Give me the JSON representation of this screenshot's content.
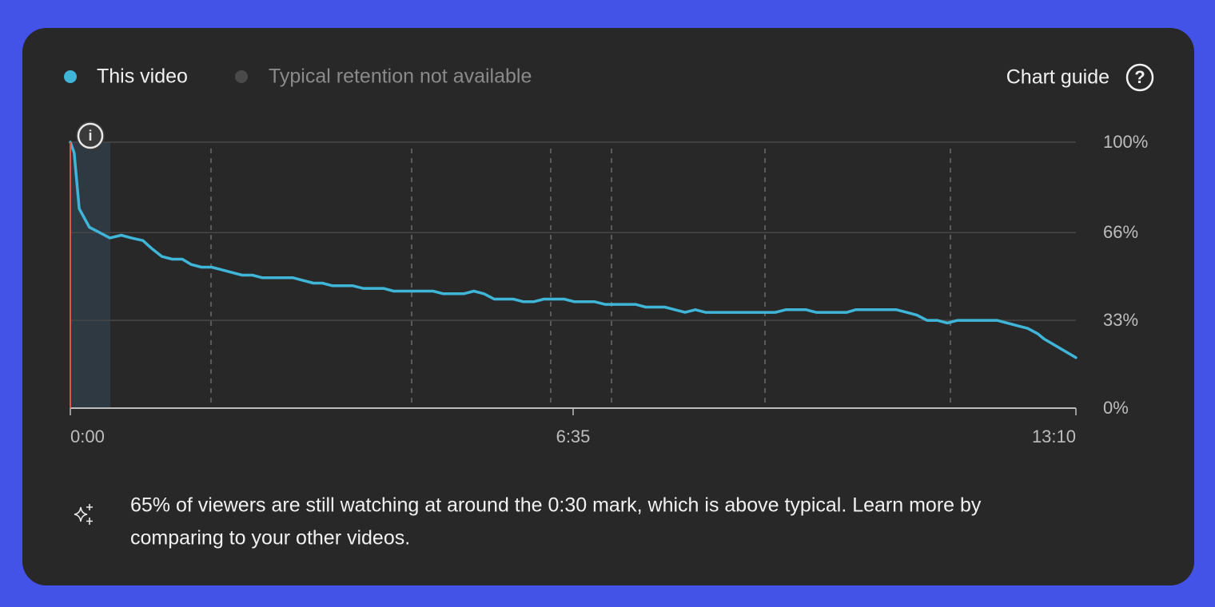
{
  "chart_guide_label": "Chart guide",
  "insight": [
    "65% of viewers are still watching at around the 0:30 mark, which is above typical. Learn more by",
    "comparing to your other videos."
  ],
  "chart_data": {
    "type": "line",
    "legend_unavailable": "Typical retention not available",
    "x": [
      0,
      3,
      7,
      15,
      23,
      31,
      40,
      48,
      57,
      64,
      72,
      80,
      88,
      95,
      103,
      111,
      119,
      127,
      135,
      143,
      151,
      159,
      167,
      175,
      183,
      191,
      198,
      206,
      214,
      222,
      230,
      238,
      246,
      254,
      261,
      269,
      277,
      285,
      293,
      301,
      309,
      317,
      325,
      333,
      341,
      348,
      356,
      364,
      372,
      380,
      388,
      396,
      404,
      412,
      420,
      428,
      436,
      444,
      452,
      460,
      467,
      475,
      483,
      491,
      499,
      507,
      515,
      523,
      531,
      539,
      547,
      554,
      562,
      570,
      578,
      586,
      594,
      602,
      610,
      617,
      625,
      633,
      641,
      649,
      657,
      665,
      673,
      681,
      689,
      697,
      705,
      712,
      720,
      728,
      736,
      744,
      752,
      760,
      765,
      790
    ],
    "series": [
      {
        "name": "This video",
        "color": "#3fb5d8",
        "values": [
          100,
          96,
          75,
          68,
          66,
          64,
          65,
          64,
          63,
          60,
          57,
          56,
          56,
          54,
          53,
          53,
          52,
          51,
          50,
          50,
          49,
          49,
          49,
          49,
          48,
          47,
          47,
          46,
          46,
          46,
          45,
          45,
          45,
          44,
          44,
          44,
          44,
          44,
          43,
          43,
          43,
          44,
          43,
          41,
          41,
          41,
          40,
          40,
          41,
          41,
          41,
          40,
          40,
          40,
          39,
          39,
          39,
          39,
          38,
          38,
          38,
          37,
          36,
          37,
          36,
          36,
          36,
          36,
          36,
          36,
          36,
          36,
          37,
          37,
          37,
          36,
          36,
          36,
          36,
          37,
          37,
          37,
          37,
          37,
          36,
          35,
          33,
          33,
          32,
          33,
          33,
          33,
          33,
          33,
          32,
          31,
          30,
          28,
          26,
          19
        ]
      }
    ],
    "xlim": [
      0,
      790
    ],
    "xticks": [
      {
        "value": 0,
        "label": "0:00"
      },
      {
        "value": 395,
        "label": "6:35"
      },
      {
        "value": 790,
        "label": "13:10"
      }
    ],
    "ylim": [
      0,
      100
    ],
    "yticks": [
      {
        "value": 0,
        "label": "0%"
      },
      {
        "value": 33,
        "label": "33%"
      },
      {
        "value": 66,
        "label": "66%"
      },
      {
        "value": 100,
        "label": "100%"
      }
    ],
    "grid": true
  }
}
